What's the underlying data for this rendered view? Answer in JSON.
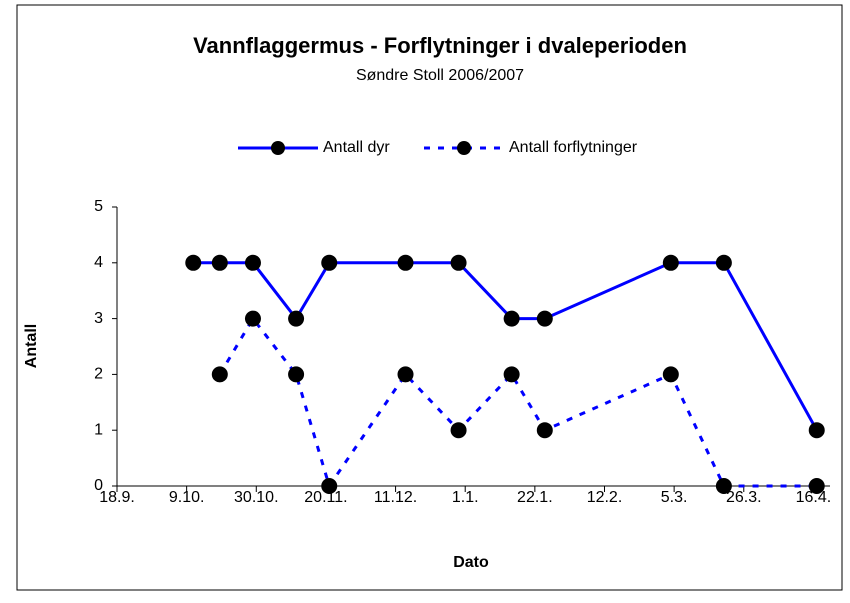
{
  "chart_data": {
    "type": "line",
    "title": "Vannflaggermus - Forflytninger i dvaleperioden",
    "subtitle": "Søndre Stoll 2006/2007",
    "x_label": "Dato",
    "y_label": "Antall",
    "x": [
      23,
      31,
      41,
      54,
      64,
      87,
      103,
      119,
      129,
      167,
      183,
      211
    ],
    "series": [
      {
        "name": "Antall dyr",
        "color": "#0000ff",
        "dash": false,
        "values": [
          4,
          4,
          4,
          3,
          4,
          4,
          4,
          3,
          3,
          4,
          4,
          1
        ]
      },
      {
        "name": "Antall forflytninger",
        "color": "#0000ff",
        "dash": true,
        "values": [
          null,
          2,
          3,
          2,
          0,
          2,
          1,
          2,
          1,
          2,
          0,
          0
        ]
      }
    ],
    "marker_color": "#000000",
    "xlim": [
      0,
      215
    ],
    "xticks": [
      {
        "value": 0,
        "label": "18.9."
      },
      {
        "value": 21,
        "label": "9.10."
      },
      {
        "value": 42,
        "label": "30.10."
      },
      {
        "value": 63,
        "label": "20.11."
      },
      {
        "value": 84,
        "label": "11.12."
      },
      {
        "value": 105,
        "label": "1.1."
      },
      {
        "value": 126,
        "label": "22.1."
      },
      {
        "value": 147,
        "label": "12.2."
      },
      {
        "value": 168,
        "label": "5.3."
      },
      {
        "value": 189,
        "label": "26.3."
      },
      {
        "value": 210,
        "label": "16.4."
      }
    ],
    "ylim": [
      0,
      5
    ],
    "yticks": [
      0,
      1,
      2,
      3,
      4,
      5
    ],
    "legend": "top",
    "grid": false
  }
}
